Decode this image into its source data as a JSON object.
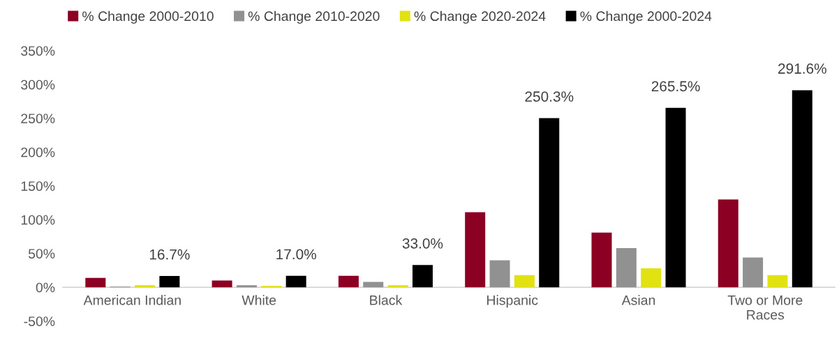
{
  "chart_data": {
    "type": "bar",
    "categories": [
      "American Indian",
      "White",
      "Black",
      "Hispanic",
      "Asian",
      "Two or More\nRaces"
    ],
    "series": [
      {
        "name": "% Change 2000-2010",
        "color": "#8b0023",
        "values": [
          14,
          10,
          17,
          111,
          81,
          130
        ]
      },
      {
        "name": "% Change 2010-2020",
        "color": "#919191",
        "values": [
          1,
          3,
          8,
          40,
          58,
          44
        ]
      },
      {
        "name": "% Change 2020-2024",
        "color": "#e2e212",
        "values": [
          3,
          2,
          3,
          18,
          28,
          18
        ]
      },
      {
        "name": "% Change 2000-2024",
        "color": "#000000",
        "values": [
          16.7,
          17.0,
          33.0,
          250.3,
          265.5,
          291.6
        ],
        "value_labels": [
          "16.7%",
          "17.0%",
          "33.0%",
          "250.3%",
          "265.5%",
          "291.6%"
        ]
      }
    ],
    "ylim": [
      -50,
      350
    ],
    "yticks": [
      {
        "value": -50,
        "label": "-50%"
      },
      {
        "value": 0,
        "label": "0%"
      },
      {
        "value": 50,
        "label": "50%"
      },
      {
        "value": 100,
        "label": "100%"
      },
      {
        "value": 150,
        "label": "150%"
      },
      {
        "value": 200,
        "label": "200%"
      },
      {
        "value": 250,
        "label": "250%"
      },
      {
        "value": 300,
        "label": "300%"
      },
      {
        "value": 350,
        "label": "350%"
      }
    ],
    "grid": false,
    "legend": "top"
  }
}
